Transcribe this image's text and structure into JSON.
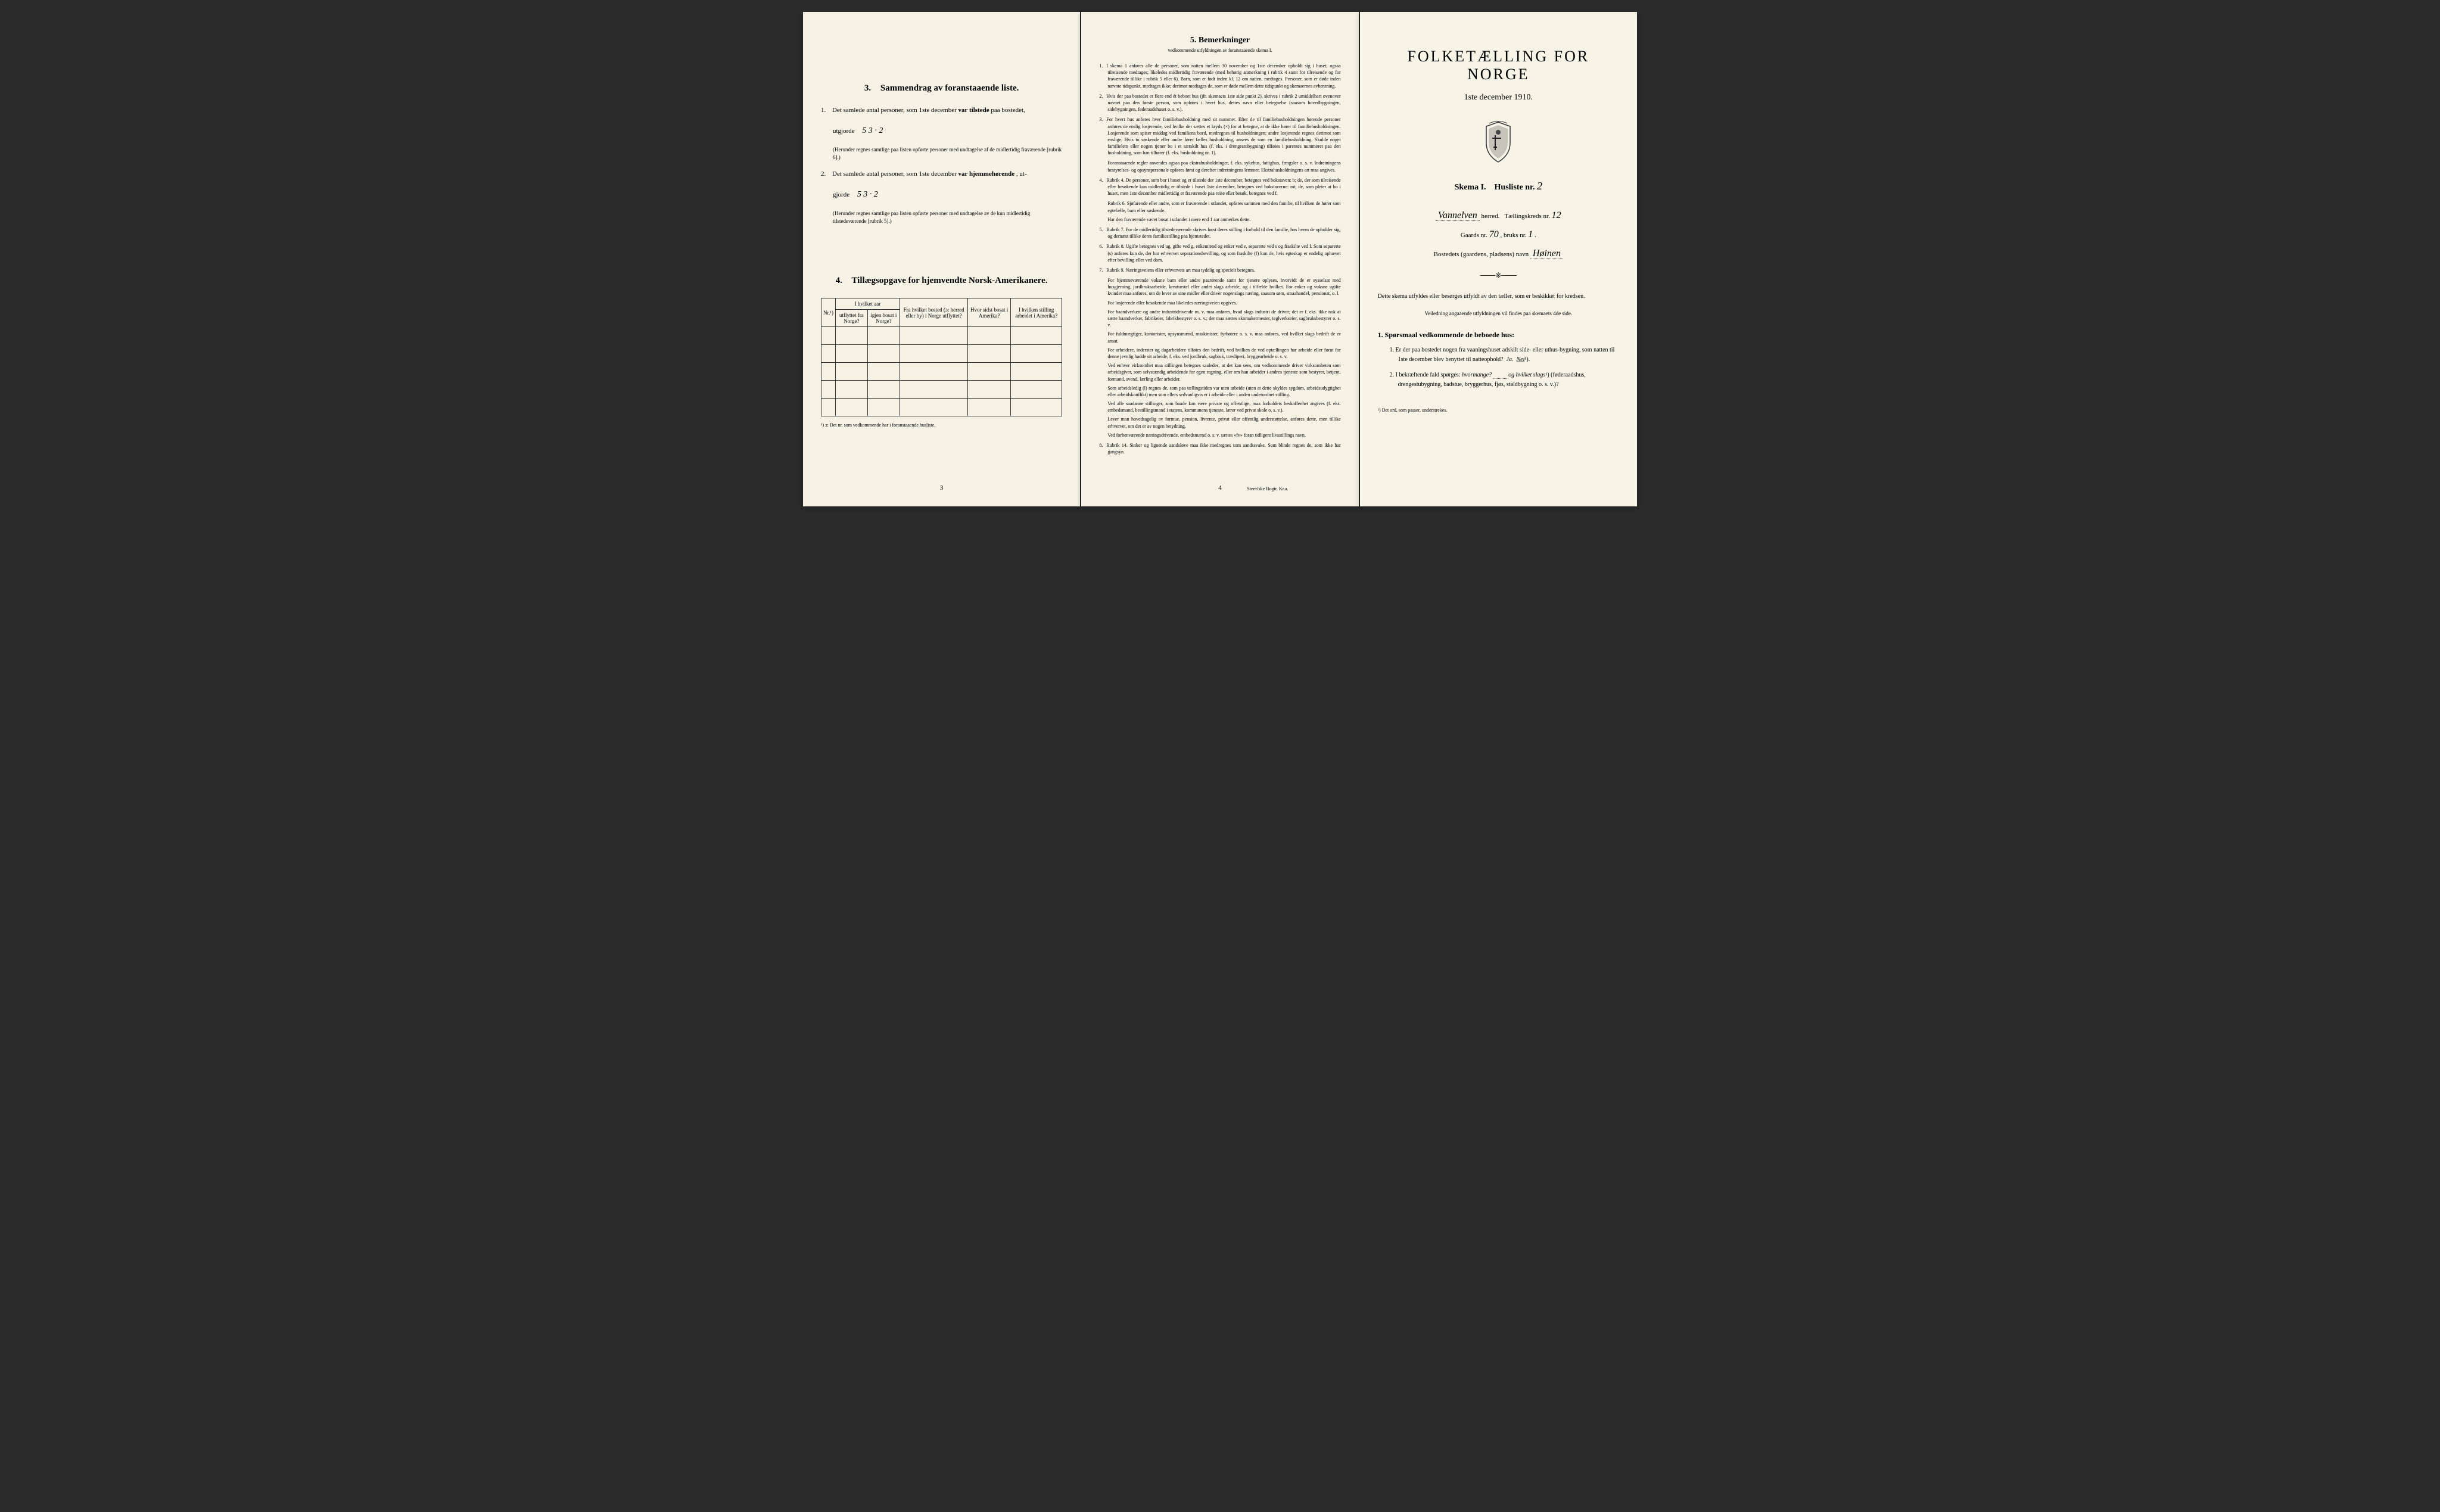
{
  "colors": {
    "paper": "#f4f0e4",
    "paper2": "#f5f1e5",
    "paper3": "#f7f3e7",
    "ink": "#1a1a1a",
    "bg": "#2a2a2a"
  },
  "left": {
    "section3": {
      "num": "3.",
      "title": "Sammendrag av foranstaaende liste.",
      "item1": {
        "num": "1.",
        "text_a": "Det samlede antal personer, som 1ste december ",
        "text_b": "var tilstede",
        "text_c": " paa bostedet,",
        "text_d": "utgjorde",
        "value": "5   3 · 2",
        "note": "(Herunder regnes samtlige paa listen opførte personer med undtagelse af de midlertidig fraværende [rubrik 6].)"
      },
      "item2": {
        "num": "2.",
        "text_a": "Det samlede antal personer, som 1ste december ",
        "text_b": "var hjemmehørende",
        "text_c": ", ut-",
        "text_d": "gjorde",
        "value": "5   3 · 2",
        "note": "(Herunder regnes samtlige paa listen opførte personer med undtagelse av de kun midlertidig tilstedeværende [rubrik 5].)"
      }
    },
    "section4": {
      "num": "4.",
      "title": "Tillægsopgave for hjemvendte Norsk-Amerikanere.",
      "headers": {
        "col0": "Nr.¹)",
        "col1_top": "I hvilket aar",
        "col1a": "utflyttet fra Norge?",
        "col1b": "igjen bosat i Norge?",
        "col2": "Fra hvilket bosted (ɔ: herred eller by) i Norge utflyttet?",
        "col3": "Hvor sidst bosat i Amerika?",
        "col4": "I hvilken stilling arbeidet i Amerika?"
      },
      "footnote": "¹) ɔ: Det nr. som vedkommende har i foranstaaende husliste."
    },
    "page": "3"
  },
  "middle": {
    "title_num": "5.",
    "title": "Bemerkninger",
    "subtitle": "vedkommende utfyldningen av foranstaaende skema I.",
    "rules": [
      {
        "n": "1.",
        "text": "I skema 1 anføres alle de personer, som natten mellem 30 november og 1ste december opholdt sig i huset; ogsaa tilreisende medtages; likeledes midlertidig fraværende (med behørig anmerkning i rubrik 4 samt for tilreisende og for fraværende tillike i rubrik 5 eller 6). Barn, som er født inden kl. 12 om natten, medtages. Personer, som er døde inden nævnte tidspunkt, medtages ikke; derimot medtages de, som er døde mellem dette tidspunkt og skemaernes avhentning."
      },
      {
        "n": "2.",
        "text": "Hvis der paa bostedet er flere end ét beboet hus (jfr. skemaets 1ste side punkt 2), skrives i rubrik 2 umiddelbart ovenover navnet paa den første person, som opføres i hvert hus, dettes navn eller betegnelse (saasom hovedbygningen, sidebygningen, føderaadshuset o. s. v.)."
      },
      {
        "n": "3.",
        "text": "For hvert hus anføres hver familiehusholdning med sit nummer. Efter de til familiehusholdningen hørende personer anføres de enslig losjerende, ved hvilke der sættes et kryds (×) for at betegne, at de ikke hører til familiehusholdningen. Losjerende som spiser middag ved familiens bord, medregnes til husholdningen; andre losjerende regnes derimot som enslige. Hvis to søskende eller andre fører fælles husholdning, ansees de som en familiehusholdning. Skulde noget familielem eller nogen tjener bo i et særskilt hus (f. eks. i drengestubygning) tilføies i parentes nummeret paa den husholdning, som han tilhører (f. eks. husholdning nr. 1)."
      },
      {
        "n": "",
        "text": "Foranstaaende regler anvendes ogsaa paa ekstrahusholdninger, f. eks. sykehus, fattighus, fængsler o. s. v. Indretningens bestyrelses- og opsynspersonale opføres først og derefter indretningens lemmer. Ekstrahusholdningens art maa angives."
      },
      {
        "n": "4.",
        "text": "Rubrik 4. De personer, som bor i huset og er tilstede der 1ste december, betegnes ved bokstaven: b; de, der som tilreisende eller besøkende kun midlertidig er tilstede i huset 1ste december, betegnes ved bokstaverne: mt; de, som pleier at bo i huset, men 1ste december midlertidig er fraværende paa reise eller besøk, betegnes ved f."
      },
      {
        "n": "",
        "text": "Rubrik 6. Sjøfarende eller andre, som er fraværende i utlandet, opføres sammen med den familie, til hvilken de hører som egtefælle, barn eller søskende."
      },
      {
        "n": "",
        "text": "Har den fraværende været bosat i utlandet i mere end 1 aar anmerkes dette."
      },
      {
        "n": "5.",
        "text": "Rubrik 7. For de midlertidig tilstedeværende skrives først deres stilling i forhold til den familie, hos hvem de opholder sig, og dernæst tillike deres familiestilling paa hjemstedet."
      },
      {
        "n": "6.",
        "text": "Rubrik 8. Ugifte betegnes ved ug, gifte ved g, enkemænd og enker ved e, separerte ved s og fraskilte ved f. Som separerte (s) anføres kun de, der har erhvervet separationsbevilling, og som fraskilte (f) kun de, hvis egteskap er endelig ophævet efter bevilling eller ved dom."
      },
      {
        "n": "7.",
        "text": "Rubrik 9. Næringsveiens eller erhvervets art maa tydelig og specielt betegnes."
      },
      {
        "n": "",
        "text": "For hjemmeværende voksne barn eller andre paarørende samt for tjenere oplyses, hvorvidt de er sysselsat med husgjerning, jordbruksarbeide, kreaturstel eller andet slags arbeide, og i tilfælde hvilket. For enker og voksne ugifte kvinder maa anføres, om de lever av sine midler eller driver nogenslags næring, saasom søm, smaahandel, pensionat, o. l."
      },
      {
        "n": "",
        "text": "For losjerende eller besøkende maa likeledes næringsveien opgives."
      },
      {
        "n": "",
        "text": "For haandverkere og andre industridrivende m. v. maa anføres, hvad slags industri de driver; det er f. eks. ikke nok at sætte haandverker, fabrikeier, fabrikbestyrer o. s. v.; der maa sættes skomakermester, teglverkseier, sagbruksbestyrer o. s. v."
      },
      {
        "n": "",
        "text": "For fuldmægtiger, kontorister, opsynsmænd, maskinister, fyrbøtere o. s. v. maa anføres, ved hvilket slags bedrift de er ansat."
      },
      {
        "n": "",
        "text": "For arbeidere, inderster og dagarbeidere tilføies den bedrift, ved hvilken de ved optællingen har arbeide eller forut for denne jevnlig hadde sit arbeide, f. eks. ved jordbruk, sagbruk, træsliperi, bryggearbeide o. s. v."
      },
      {
        "n": "",
        "text": "Ved enhver virksomhet maa stillingen betegnes saaledes, at det kan sees, om vedkommende driver virksomheten som arbeidsgiver, som selvstændig arbeidende for egen regning, eller om han arbeider i andres tjeneste som bestyrer, betjent, formand, svend, lærling eller arbeider."
      },
      {
        "n": "",
        "text": "Som arbeidsledig (l) regnes de, som paa tællingstiden var uten arbeide (uten at dette skyldes sygdom, arbeidsudygtighet eller arbeidskonflikt) men som ellers sedvanligvis er i arbeide eller i anden underordnet stilling."
      },
      {
        "n": "",
        "text": "Ved alle saadanne stillinger, som baade kan være private og offentlige, maa forholdets beskaffenhet angives (f. eks. embedsmand, bestillingsmand i statens, kommunens tjeneste, lærer ved privat skole o. s. v.)."
      },
      {
        "n": "",
        "text": "Lever man hovedsagelig av formue, pension, livrente, privat eller offentlig understøttelse, anføres dette, men tillike erhvervet, om det er av nogen betydning."
      },
      {
        "n": "",
        "text": "Ved forhenværende næringsdrivende, embedsmænd o. s. v. sættes «fv» foran tidligere livsstillings navn."
      },
      {
        "n": "8.",
        "text": "Rubrik 14. Sinker og lignende aandsløve maa ikke medregnes som aandssvake. Som blinde regnes de, som ikke har gangsyn."
      }
    ],
    "page": "4",
    "printer": "Steen'ske Bogtr. Kr.a."
  },
  "right": {
    "title": "FOLKETÆLLING FOR NORGE",
    "date": "1ste december 1910.",
    "skema_a": "Skema I.",
    "skema_b": "Husliste nr.",
    "skema_val": "2",
    "herred_val": "Vannelven",
    "herred_label": "herred.",
    "kreds_label": "Tællingskreds nr.",
    "kreds_val": "12",
    "gaards_label": "Gaards nr.",
    "gaards_val": "70",
    "bruks_label": ", bruks nr.",
    "bruks_val": "1",
    "bosted_label": "Bostedets (gaardens, pladsens) navn",
    "bosted_val": "Høinen",
    "instruction": "Dette skema utfyldes eller besørges utfyldt av den tæller, som er beskikket for kredsen.",
    "instruction_sub": "Veiledning angaaende utfyldningen vil findes paa skemaets 4de side.",
    "q1": {
      "num": "1.",
      "title": "Spørsmaal vedkommende de beboede hus:",
      "item1": {
        "num": "1.",
        "text": "Er der paa bostedet nogen fra vaaningshuset adskilt side- eller uthus-bygning, som natten til 1ste december blev benyttet til natteophold?",
        "ja": "Ja.",
        "nei": "Nei"
      },
      "item2": {
        "num": "2.",
        "text_a": "I bekræftende fald spørges: ",
        "text_b": "hvormange?",
        "text_c": " og ",
        "text_d": "hvilket slags",
        "text_e": " (føderaadshus, drengestubygning, badstue, bryggerhus, fjøs, staldbygning o. s. v.)?"
      }
    },
    "footnote": "¹) Det ord, som passer, understrekes."
  }
}
